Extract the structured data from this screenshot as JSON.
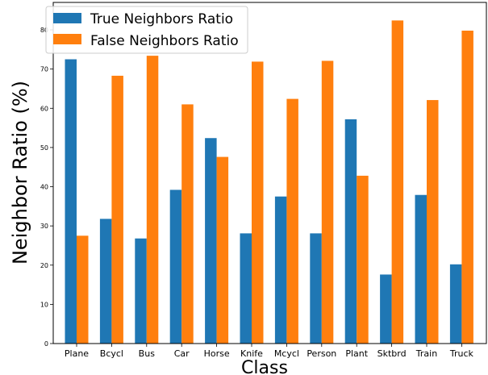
{
  "chart_data": {
    "type": "bar",
    "categories": [
      "Plane",
      "Bcycl",
      "Bus",
      "Car",
      "Horse",
      "Knife",
      "Mcycl",
      "Person",
      "Plant",
      "Sktbrd",
      "Train",
      "Truck"
    ],
    "series": [
      {
        "name": "True Neighbors Ratio",
        "color": "#1f77b4",
        "values": [
          72.5,
          31.8,
          26.8,
          39.2,
          52.4,
          28.1,
          37.5,
          28.1,
          57.2,
          17.6,
          37.9,
          20.2
        ]
      },
      {
        "name": "False Neighbors Ratio",
        "color": "#ff7f0e",
        "values": [
          27.5,
          68.3,
          73.4,
          61.0,
          47.6,
          71.9,
          62.4,
          72.1,
          42.8,
          82.4,
          62.1,
          79.8
        ]
      }
    ],
    "xlabel": "Class",
    "ylabel": "Neighbor Ratio (%)",
    "ylim": [
      0,
      87
    ],
    "yticks": [
      0,
      10,
      20,
      30,
      40,
      50,
      60,
      70,
      80
    ],
    "legend": "top-left",
    "grid": false
  }
}
